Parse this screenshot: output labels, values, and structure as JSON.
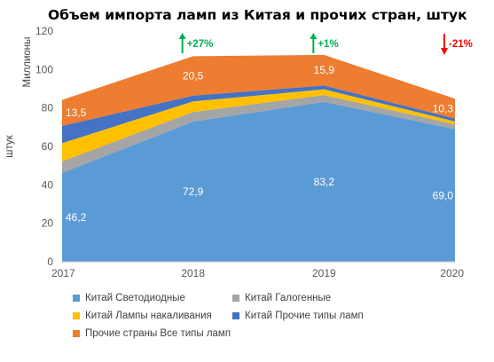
{
  "chart_data": {
    "type": "area",
    "stacked": true,
    "title": "Объем импорта ламп из Китая и прочих стран, штук",
    "ylabel_primary": "Миллионы",
    "ylabel_secondary": "штук",
    "ylim": [
      0,
      120
    ],
    "yticks": [
      "0",
      "20",
      "40",
      "60",
      "80",
      "100",
      "120"
    ],
    "x": [
      "2017",
      "2018",
      "2019",
      "2020"
    ],
    "grid": false,
    "legend_position": "bottom",
    "series": [
      {
        "name": "Китай Светодиодные",
        "color": "#5b9bd5",
        "values": [
          46.2,
          72.9,
          83.2,
          69.0
        ],
        "labels": [
          "46,2",
          "72,9",
          "83,2",
          "69,0"
        ]
      },
      {
        "name": "Китай Галогенные",
        "color": "#a5a5a5",
        "values": [
          6.0,
          5.0,
          3.5,
          2.5
        ]
      },
      {
        "name": "Китай Лампы накаливания",
        "color": "#ffc000",
        "values": [
          9.5,
          5.5,
          3.0,
          1.5
        ]
      },
      {
        "name": "Китай Прочие типы ламп",
        "color": "#4472c4",
        "values": [
          9.0,
          3.0,
          2.0,
          1.5
        ]
      },
      {
        "name": "Прочие страны Все типы ламп",
        "color": "#ed7d31",
        "values": [
          13.5,
          20.5,
          15.9,
          10.3
        ],
        "labels": [
          "13,5",
          "20,5",
          "15,9",
          "10,3"
        ]
      }
    ],
    "changes": [
      {
        "label": "+27%",
        "direction": "up",
        "color": "#00b050"
      },
      {
        "label": "+1%",
        "direction": "up",
        "color": "#00b050"
      },
      {
        "label": "-21%",
        "direction": "down",
        "color": "#ff0000"
      }
    ]
  }
}
